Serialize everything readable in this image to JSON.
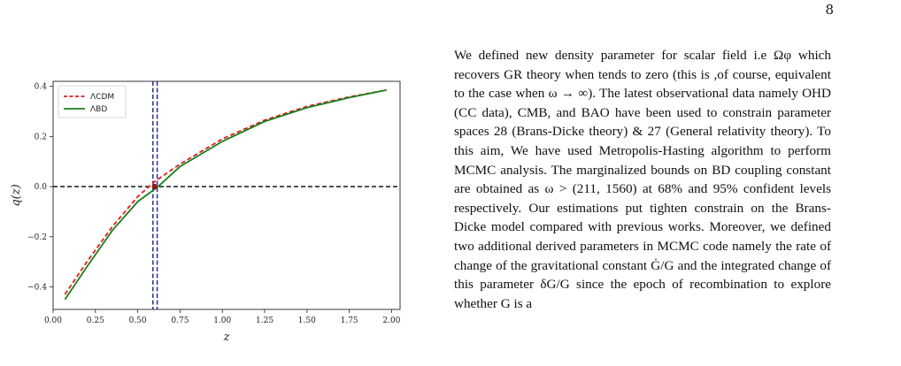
{
  "page": {
    "number": "8"
  },
  "figure": {
    "chart_data": {
      "type": "line",
      "xlabel": "z",
      "ylabel": "q(z)",
      "xlim": [
        0.0,
        2.05
      ],
      "ylim": [
        -0.49,
        0.42
      ],
      "x_ticks": [
        "0.00",
        "0.25",
        "0.50",
        "0.75",
        "1.00",
        "1.25",
        "1.50",
        "1.75",
        "2.00"
      ],
      "x_tick_values": [
        0.0,
        0.25,
        0.5,
        0.75,
        1.0,
        1.25,
        1.5,
        1.75,
        2.0
      ],
      "y_ticks": [
        "−0.4",
        "−0.2",
        "0.0",
        "0.2",
        "0.4"
      ],
      "y_tick_values": [
        -0.4,
        -0.2,
        0.0,
        0.2,
        0.4
      ],
      "legend_position": "top-left",
      "series": [
        {
          "name": "ΛCDM",
          "color": "#e31a1c",
          "style": "dashed",
          "x": [
            0.07,
            0.2,
            0.35,
            0.5,
            0.6,
            0.75,
            1.0,
            1.25,
            1.5,
            1.75,
            1.97
          ],
          "y": [
            -0.43,
            -0.3,
            -0.16,
            -0.04,
            0.02,
            0.09,
            0.19,
            0.265,
            0.32,
            0.358,
            0.385
          ]
        },
        {
          "name": "ΛBD",
          "color": "#1a7f1a",
          "style": "solid",
          "x": [
            0.07,
            0.2,
            0.35,
            0.5,
            0.62,
            0.75,
            1.0,
            1.25,
            1.5,
            1.75,
            1.97
          ],
          "y": [
            -0.45,
            -0.32,
            -0.175,
            -0.06,
            0.0,
            0.08,
            0.18,
            0.26,
            0.315,
            0.355,
            0.385
          ]
        }
      ],
      "h_line": {
        "y": 0.0,
        "color": "#000000",
        "style": "dashed"
      },
      "v_lines": [
        {
          "x": 0.59,
          "color": "#1a237e",
          "style": "dashed"
        },
        {
          "x": 0.615,
          "color": "#1a237e",
          "style": "dashed"
        }
      ],
      "marker": {
        "x": 0.6,
        "y": 0.0,
        "color": "#8b1a1a"
      }
    }
  },
  "body_text": "We defined new density parameter for scalar field i.e Ωφ which recovers GR theory when tends to zero (this is ,of course, equivalent to the case when ω → ∞). The latest observational data namely OHD (CC data), CMB, and BAO have been used to constrain parameter spaces 28 (Brans-Dicke theory) & 27 (General relativity theory). To this aim, We have used Metropolis-Hasting algorithm to perform MCMC analysis. The marginalized bounds on BD coupling constant are obtained as ω > (211, 1560) at 68% and 95% confident levels respectively. Our estimations put tighten constrain on the Brans-Dicke model compared with previous works. Moreover, we defined two additional derived parameters in MCMC code namely the rate of change of the gravitational constant Ġ/G and the integrated change of this parameter δG/G since the epoch of recombination to explore whether G is a"
}
